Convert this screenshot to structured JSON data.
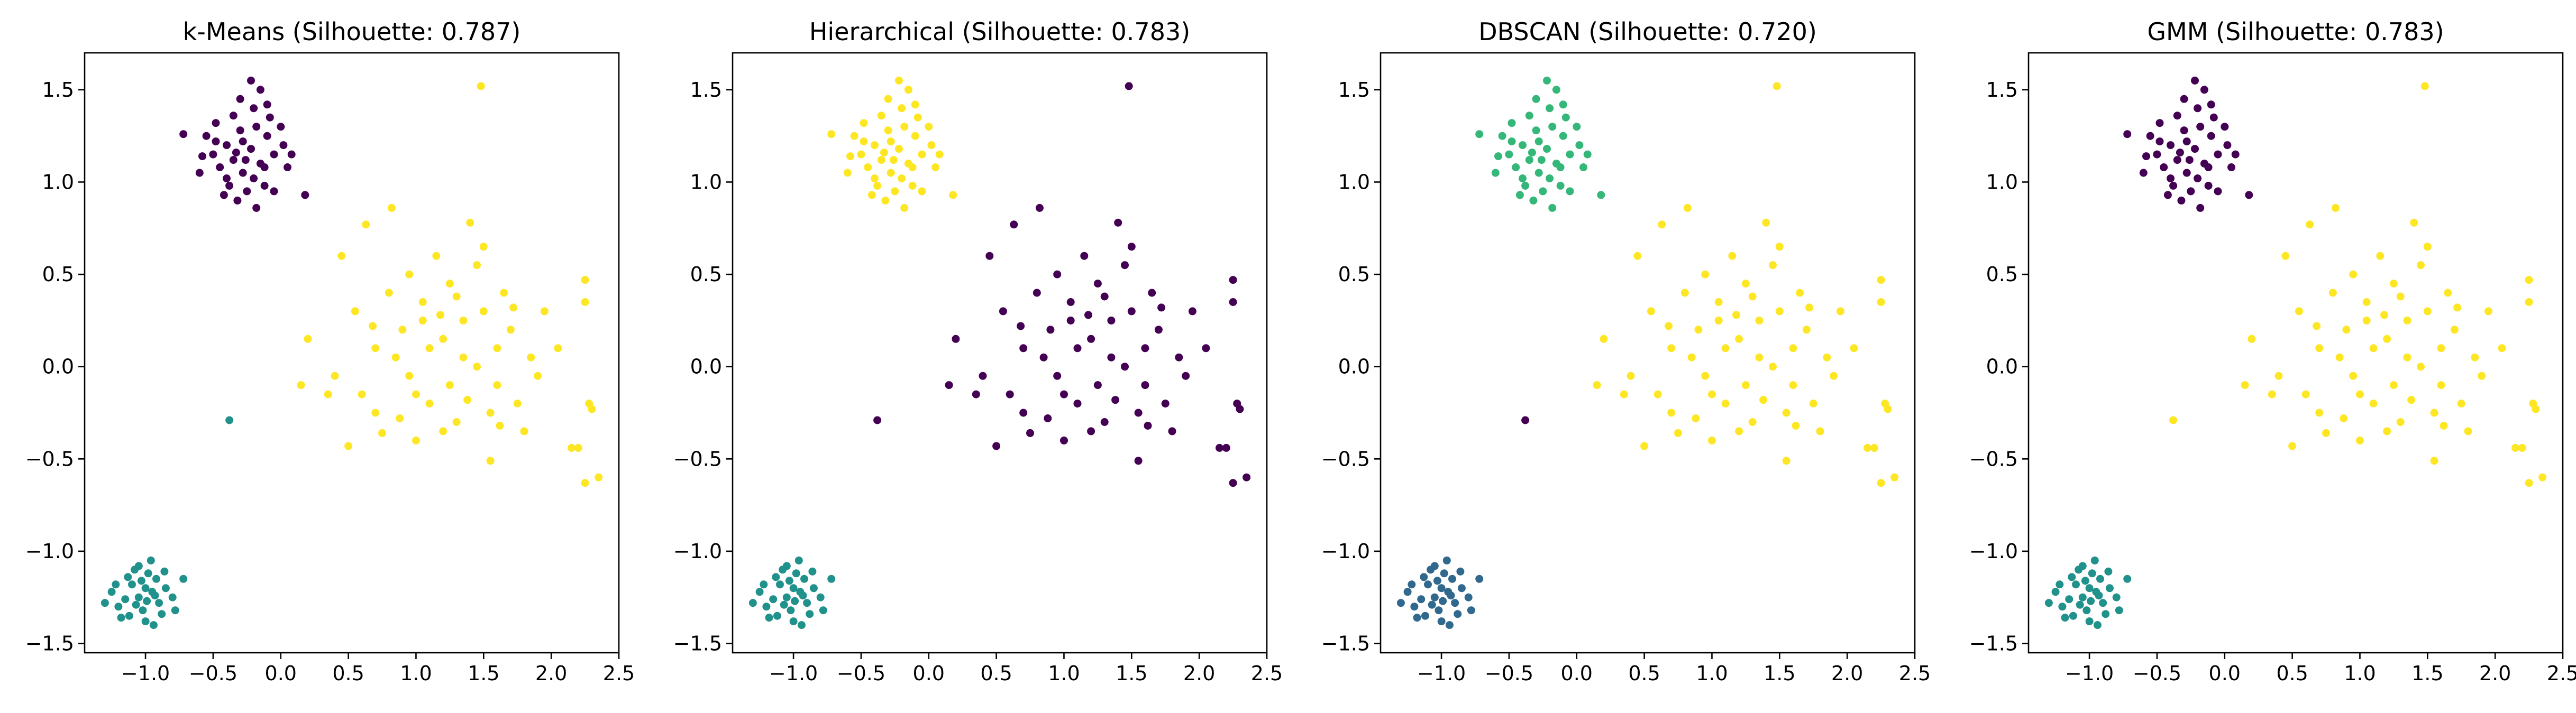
{
  "figure": {
    "background": "#ffffff"
  },
  "chart_data": [
    {
      "type": "scatter",
      "title": "k-Means (Silhouette: 0.787)",
      "xlabel": "",
      "ylabel": "",
      "xlim": [
        -1.45,
        2.5
      ],
      "ylim": [
        -1.55,
        1.7
      ],
      "xticks": [
        -1.0,
        -0.5,
        0.0,
        0.5,
        1.0,
        1.5,
        2.0,
        2.5
      ],
      "xtick_labels": [
        "−1.0",
        "−0.5",
        "0.0",
        "0.5",
        "1.0",
        "1.5",
        "2.0",
        "2.5"
      ],
      "yticks": [
        -1.5,
        -1.0,
        -0.5,
        0.0,
        0.5,
        1.0,
        1.5
      ],
      "ytick_labels": [
        "−1.5",
        "−1.0",
        "−0.5",
        "0.0",
        "0.5",
        "1.0",
        "1.5"
      ],
      "grid": false,
      "label_colors": {
        "A": "#440154",
        "B": "#21918c",
        "C": "#fde725",
        "X": "#21918c"
      }
    },
    {
      "type": "scatter",
      "title": "Hierarchical (Silhouette: 0.783)",
      "xlabel": "",
      "ylabel": "",
      "xlim": [
        -1.45,
        2.5
      ],
      "ylim": [
        -1.55,
        1.7
      ],
      "xticks": [
        -1.0,
        -0.5,
        0.0,
        0.5,
        1.0,
        1.5,
        2.0,
        2.5
      ],
      "xtick_labels": [
        "−1.0",
        "−0.5",
        "0.0",
        "0.5",
        "1.0",
        "1.5",
        "2.0",
        "2.5"
      ],
      "yticks": [
        -1.5,
        -1.0,
        -0.5,
        0.0,
        0.5,
        1.0,
        1.5
      ],
      "ytick_labels": [
        "−1.5",
        "−1.0",
        "−0.5",
        "0.0",
        "0.5",
        "1.0",
        "1.5"
      ],
      "grid": false,
      "label_colors": {
        "A": "#fde725",
        "B": "#21918c",
        "C": "#440154",
        "X": "#440154"
      }
    },
    {
      "type": "scatter",
      "title": "DBSCAN (Silhouette: 0.720)",
      "xlabel": "",
      "ylabel": "",
      "xlim": [
        -1.45,
        2.5
      ],
      "ylim": [
        -1.55,
        1.7
      ],
      "xticks": [
        -1.0,
        -0.5,
        0.0,
        0.5,
        1.0,
        1.5,
        2.0,
        2.5
      ],
      "xtick_labels": [
        "−1.0",
        "−0.5",
        "0.0",
        "0.5",
        "1.0",
        "1.5",
        "2.0",
        "2.5"
      ],
      "yticks": [
        -1.5,
        -1.0,
        -0.5,
        0.0,
        0.5,
        1.0,
        1.5
      ],
      "ytick_labels": [
        "−1.5",
        "−1.0",
        "−0.5",
        "0.0",
        "0.5",
        "1.0",
        "1.5"
      ],
      "grid": false,
      "label_colors": {
        "A": "#35b779",
        "B": "#31688e",
        "C": "#fde725",
        "X": "#440154"
      }
    },
    {
      "type": "scatter",
      "title": "GMM (Silhouette: 0.783)",
      "xlabel": "",
      "ylabel": "",
      "xlim": [
        -1.45,
        2.5
      ],
      "ylim": [
        -1.55,
        1.7
      ],
      "xticks": [
        -1.0,
        -0.5,
        0.0,
        0.5,
        1.0,
        1.5,
        2.0,
        2.5
      ],
      "xtick_labels": [
        "−1.0",
        "−0.5",
        "0.0",
        "0.5",
        "1.0",
        "1.5",
        "2.0",
        "2.5"
      ],
      "yticks": [
        -1.5,
        -1.0,
        -0.5,
        0.0,
        0.5,
        1.0,
        1.5
      ],
      "ytick_labels": [
        "−1.5",
        "−1.0",
        "−0.5",
        "0.0",
        "0.5",
        "1.0",
        "1.5"
      ],
      "grid": false,
      "label_colors": {
        "A": "#440154",
        "B": "#21918c",
        "C": "#fde725",
        "X": "#fde725"
      }
    }
  ],
  "points": [
    {
      "x": -0.35,
      "y": 1.12,
      "g": "A"
    },
    {
      "x": -0.28,
      "y": 1.05,
      "g": "A"
    },
    {
      "x": -0.22,
      "y": 1.18,
      "g": "A"
    },
    {
      "x": -0.15,
      "y": 1.1,
      "g": "A"
    },
    {
      "x": -0.4,
      "y": 1.2,
      "g": "A"
    },
    {
      "x": -0.3,
      "y": 1.28,
      "g": "A"
    },
    {
      "x": -0.18,
      "y": 1.3,
      "g": "A"
    },
    {
      "x": -0.1,
      "y": 1.25,
      "g": "A"
    },
    {
      "x": -0.05,
      "y": 1.15,
      "g": "A"
    },
    {
      "x": -0.45,
      "y": 1.08,
      "g": "A"
    },
    {
      "x": -0.5,
      "y": 1.15,
      "g": "A"
    },
    {
      "x": -0.38,
      "y": 0.98,
      "g": "A"
    },
    {
      "x": -0.25,
      "y": 0.95,
      "g": "A"
    },
    {
      "x": -0.12,
      "y": 0.98,
      "g": "A"
    },
    {
      "x": -0.2,
      "y": 1.4,
      "g": "A"
    },
    {
      "x": -0.3,
      "y": 1.45,
      "g": "A"
    },
    {
      "x": -0.22,
      "y": 1.55,
      "g": "A"
    },
    {
      "x": -0.15,
      "y": 1.5,
      "g": "A"
    },
    {
      "x": -0.08,
      "y": 1.35,
      "g": "A"
    },
    {
      "x": 0.02,
      "y": 1.2,
      "g": "A"
    },
    {
      "x": 0.05,
      "y": 1.08,
      "g": "A"
    },
    {
      "x": -0.55,
      "y": 1.25,
      "g": "A"
    },
    {
      "x": -0.6,
      "y": 1.05,
      "g": "A"
    },
    {
      "x": -0.48,
      "y": 1.32,
      "g": "A"
    },
    {
      "x": -0.35,
      "y": 1.36,
      "g": "A"
    },
    {
      "x": -0.28,
      "y": 1.22,
      "g": "A"
    },
    {
      "x": -0.2,
      "y": 1.02,
      "g": "A"
    },
    {
      "x": -0.32,
      "y": 0.9,
      "g": "A"
    },
    {
      "x": -0.18,
      "y": 0.86,
      "g": "A"
    },
    {
      "x": -0.42,
      "y": 0.93,
      "g": "A"
    },
    {
      "x": -0.72,
      "y": 1.26,
      "g": "A"
    },
    {
      "x": 0.18,
      "y": 0.93,
      "g": "A"
    },
    {
      "x": -0.1,
      "y": 1.42,
      "g": "A"
    },
    {
      "x": 0.0,
      "y": 1.3,
      "g": "A"
    },
    {
      "x": -0.58,
      "y": 1.14,
      "g": "A"
    },
    {
      "x": -0.26,
      "y": 1.12,
      "g": "A"
    },
    {
      "x": -0.12,
      "y": 1.08,
      "g": "A"
    },
    {
      "x": -0.4,
      "y": 1.02,
      "g": "A"
    },
    {
      "x": -0.05,
      "y": 0.95,
      "g": "A"
    },
    {
      "x": -0.48,
      "y": 1.22,
      "g": "A"
    },
    {
      "x": 0.08,
      "y": 1.15,
      "g": "A"
    },
    {
      "x": -0.33,
      "y": 1.16,
      "g": "A"
    },
    {
      "x": -1.0,
      "y": -1.2,
      "g": "B"
    },
    {
      "x": -1.05,
      "y": -1.25,
      "g": "B"
    },
    {
      "x": -0.95,
      "y": -1.22,
      "g": "B"
    },
    {
      "x": -1.1,
      "y": -1.18,
      "g": "B"
    },
    {
      "x": -0.9,
      "y": -1.28,
      "g": "B"
    },
    {
      "x": -1.02,
      "y": -1.32,
      "g": "B"
    },
    {
      "x": -0.98,
      "y": -1.12,
      "g": "B"
    },
    {
      "x": -1.08,
      "y": -1.1,
      "g": "B"
    },
    {
      "x": -0.92,
      "y": -1.15,
      "g": "B"
    },
    {
      "x": -1.15,
      "y": -1.26,
      "g": "B"
    },
    {
      "x": -1.2,
      "y": -1.3,
      "g": "B"
    },
    {
      "x": -0.85,
      "y": -1.2,
      "g": "B"
    },
    {
      "x": -1.0,
      "y": -1.38,
      "g": "B"
    },
    {
      "x": -1.05,
      "y": -1.08,
      "g": "B"
    },
    {
      "x": -0.96,
      "y": -1.05,
      "g": "B"
    },
    {
      "x": -1.12,
      "y": -1.35,
      "g": "B"
    },
    {
      "x": -0.88,
      "y": -1.34,
      "g": "B"
    },
    {
      "x": -1.25,
      "y": -1.22,
      "g": "B"
    },
    {
      "x": -0.8,
      "y": -1.25,
      "g": "B"
    },
    {
      "x": -1.3,
      "y": -1.28,
      "g": "B"
    },
    {
      "x": -0.72,
      "y": -1.15,
      "g": "B"
    },
    {
      "x": -1.03,
      "y": -1.16,
      "g": "B"
    },
    {
      "x": -0.93,
      "y": -1.24,
      "g": "B"
    },
    {
      "x": -1.07,
      "y": -1.29,
      "g": "B"
    },
    {
      "x": -0.99,
      "y": -1.27,
      "g": "B"
    },
    {
      "x": -1.13,
      "y": -1.14,
      "g": "B"
    },
    {
      "x": -0.86,
      "y": -1.11,
      "g": "B"
    },
    {
      "x": -1.18,
      "y": -1.36,
      "g": "B"
    },
    {
      "x": -0.94,
      "y": -1.4,
      "g": "B"
    },
    {
      "x": -1.22,
      "y": -1.18,
      "g": "B"
    },
    {
      "x": -0.78,
      "y": -1.32,
      "g": "B"
    },
    {
      "x": 1.2,
      "y": 0.15,
      "g": "C"
    },
    {
      "x": 1.35,
      "y": 0.05,
      "g": "C"
    },
    {
      "x": 1.05,
      "y": 0.25,
      "g": "C"
    },
    {
      "x": 1.5,
      "y": 0.3,
      "g": "C"
    },
    {
      "x": 0.95,
      "y": -0.05,
      "g": "C"
    },
    {
      "x": 1.6,
      "y": -0.1,
      "g": "C"
    },
    {
      "x": 1.1,
      "y": -0.2,
      "g": "C"
    },
    {
      "x": 1.3,
      "y": -0.3,
      "g": "C"
    },
    {
      "x": 0.8,
      "y": 0.4,
      "g": "C"
    },
    {
      "x": 1.7,
      "y": 0.2,
      "g": "C"
    },
    {
      "x": 1.45,
      "y": 0.55,
      "g": "C"
    },
    {
      "x": 0.7,
      "y": 0.1,
      "g": "C"
    },
    {
      "x": 1.25,
      "y": 0.45,
      "g": "C"
    },
    {
      "x": 1.85,
      "y": 0.05,
      "g": "C"
    },
    {
      "x": 0.6,
      "y": -0.15,
      "g": "C"
    },
    {
      "x": 1.55,
      "y": -0.25,
      "g": "C"
    },
    {
      "x": 1.15,
      "y": 0.6,
      "g": "C"
    },
    {
      "x": 0.9,
      "y": 0.2,
      "g": "C"
    },
    {
      "x": 1.4,
      "y": 0.78,
      "g": "C"
    },
    {
      "x": 1.0,
      "y": -0.4,
      "g": "C"
    },
    {
      "x": 1.75,
      "y": -0.2,
      "g": "C"
    },
    {
      "x": 0.55,
      "y": 0.3,
      "g": "C"
    },
    {
      "x": 0.45,
      "y": 0.6,
      "g": "C"
    },
    {
      "x": 0.5,
      "y": -0.43,
      "g": "C"
    },
    {
      "x": 0.75,
      "y": -0.36,
      "g": "C"
    },
    {
      "x": 1.95,
      "y": 0.3,
      "g": "C"
    },
    {
      "x": 2.25,
      "y": 0.47,
      "g": "C"
    },
    {
      "x": 2.25,
      "y": 0.35,
      "g": "C"
    },
    {
      "x": 2.28,
      "y": -0.2,
      "g": "C"
    },
    {
      "x": 2.3,
      "y": -0.23,
      "g": "C"
    },
    {
      "x": 2.2,
      "y": -0.44,
      "g": "C"
    },
    {
      "x": 2.15,
      "y": -0.44,
      "g": "C"
    },
    {
      "x": 2.25,
      "y": -0.63,
      "g": "C"
    },
    {
      "x": 2.35,
      "y": -0.6,
      "g": "C"
    },
    {
      "x": 1.48,
      "y": 1.52,
      "g": "C"
    },
    {
      "x": 0.82,
      "y": 0.86,
      "g": "C"
    },
    {
      "x": 0.63,
      "y": 0.77,
      "g": "C"
    },
    {
      "x": 0.2,
      "y": 0.15,
      "g": "C"
    },
    {
      "x": 0.15,
      "y": -0.1,
      "g": "C"
    },
    {
      "x": 0.35,
      "y": -0.15,
      "g": "C"
    },
    {
      "x": 1.55,
      "y": -0.51,
      "g": "C"
    },
    {
      "x": 2.05,
      "y": 0.1,
      "g": "C"
    },
    {
      "x": 1.65,
      "y": 0.4,
      "g": "C"
    },
    {
      "x": 1.25,
      "y": -0.1,
      "g": "C"
    },
    {
      "x": 0.85,
      "y": 0.05,
      "g": "C"
    },
    {
      "x": 1.05,
      "y": 0.35,
      "g": "C"
    },
    {
      "x": 1.6,
      "y": 0.1,
      "g": "C"
    },
    {
      "x": 1.35,
      "y": 0.25,
      "g": "C"
    },
    {
      "x": 1.2,
      "y": -0.35,
      "g": "C"
    },
    {
      "x": 0.95,
      "y": 0.5,
      "g": "C"
    },
    {
      "x": 1.8,
      "y": -0.35,
      "g": "C"
    },
    {
      "x": 1.45,
      "y": 0.0,
      "g": "C"
    },
    {
      "x": 1.1,
      "y": 0.1,
      "g": "C"
    },
    {
      "x": 0.7,
      "y": -0.25,
      "g": "C"
    },
    {
      "x": 1.5,
      "y": 0.65,
      "g": "C"
    },
    {
      "x": 1.9,
      "y": -0.05,
      "g": "C"
    },
    {
      "x": 0.4,
      "y": -0.05,
      "g": "C"
    },
    {
      "x": 1.3,
      "y": 0.38,
      "g": "C"
    },
    {
      "x": 1.0,
      "y": -0.15,
      "g": "C"
    },
    {
      "x": 1.62,
      "y": -0.32,
      "g": "C"
    },
    {
      "x": 0.88,
      "y": -0.28,
      "g": "C"
    },
    {
      "x": 1.38,
      "y": -0.18,
      "g": "C"
    },
    {
      "x": 1.72,
      "y": 0.32,
      "g": "C"
    },
    {
      "x": 1.18,
      "y": 0.28,
      "g": "C"
    },
    {
      "x": 0.68,
      "y": 0.22,
      "g": "C"
    },
    {
      "x": -0.38,
      "y": -0.29,
      "g": "X"
    }
  ]
}
